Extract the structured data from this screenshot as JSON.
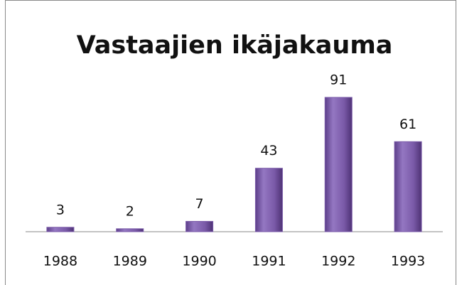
{
  "chart_data": {
    "type": "bar",
    "title": "Vastaajien ikäjakauma",
    "categories": [
      "1988",
      "1989",
      "1990",
      "1991",
      "1992",
      "1993"
    ],
    "values": [
      3,
      2,
      7,
      43,
      91,
      61
    ],
    "color": "#7a5aa8"
  }
}
